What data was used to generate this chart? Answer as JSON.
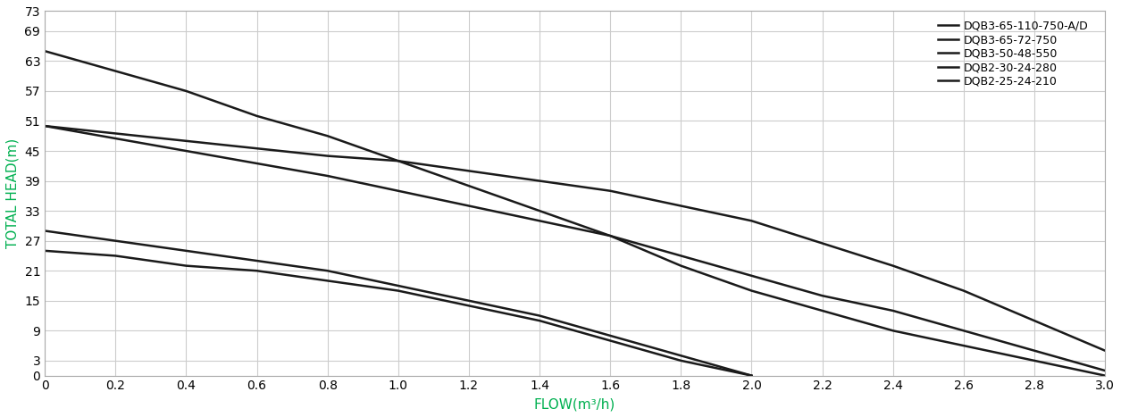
{
  "series": [
    {
      "label": "DQB3-65-110-750-A/D",
      "x": [
        0,
        0.2,
        0.4,
        0.6,
        0.8,
        1.0,
        1.2,
        1.4,
        1.6,
        1.8,
        2.0,
        2.2,
        2.4,
        2.6,
        2.8,
        3.0
      ],
      "y": [
        65,
        61,
        57,
        52,
        48,
        43,
        38,
        33,
        28,
        22,
        17,
        13,
        9,
        6,
        3,
        0
      ],
      "color": "#1a1a1a",
      "lw": 1.8
    },
    {
      "label": "DQB3-65-72-750",
      "x": [
        0,
        0.4,
        0.8,
        1.2,
        1.4,
        1.6,
        1.8,
        2.0,
        2.2,
        2.4,
        2.6,
        2.8,
        3.0
      ],
      "y": [
        50,
        45,
        40,
        34,
        31,
        28,
        24,
        20,
        16,
        13,
        9,
        5,
        1
      ],
      "color": "#1a1a1a",
      "lw": 1.8
    },
    {
      "label": "DQB3-50-48-550",
      "x": [
        0,
        0.4,
        0.8,
        1.0,
        1.2,
        1.4,
        1.6,
        2.0,
        2.4,
        2.6,
        2.8,
        3.0
      ],
      "y": [
        50,
        47,
        44,
        43,
        41,
        39,
        37,
        31,
        22,
        17,
        11,
        5
      ],
      "color": "#1a1a1a",
      "lw": 1.8
    },
    {
      "label": "DQB2-30-24-280",
      "x": [
        0,
        0.2,
        0.4,
        0.6,
        0.8,
        1.0,
        1.2,
        1.4,
        1.6,
        1.8,
        2.0
      ],
      "y": [
        29,
        27,
        25,
        23,
        21,
        18,
        15,
        12,
        8,
        4,
        0
      ],
      "color": "#1a1a1a",
      "lw": 1.8
    },
    {
      "label": "DQB2-25-24-210",
      "x": [
        0,
        0.2,
        0.4,
        0.6,
        0.8,
        1.0,
        1.2,
        1.4,
        1.6,
        1.8,
        2.0
      ],
      "y": [
        25,
        24,
        22,
        21,
        19,
        17,
        14,
        11,
        7,
        3,
        0
      ],
      "color": "#1a1a1a",
      "lw": 1.8
    }
  ],
  "xlabel": "FLOW(m³/h)",
  "ylabel": "TOTAL HEAD(m)",
  "xlabel_color": "#00b050",
  "ylabel_color": "#00b050",
  "xlim": [
    0,
    3.0
  ],
  "ylim": [
    0,
    73
  ],
  "xticks": [
    0,
    0.2,
    0.4,
    0.6,
    0.8,
    1.0,
    1.2,
    1.4,
    1.6,
    1.8,
    2.0,
    2.2,
    2.4,
    2.6,
    2.8,
    3.0
  ],
  "yticks": [
    0,
    3,
    9,
    15,
    21,
    27,
    33,
    39,
    45,
    51,
    57,
    63,
    69,
    73
  ],
  "grid_color": "#cccccc",
  "background_color": "#ffffff",
  "font_size": 10,
  "label_font_size": 11
}
